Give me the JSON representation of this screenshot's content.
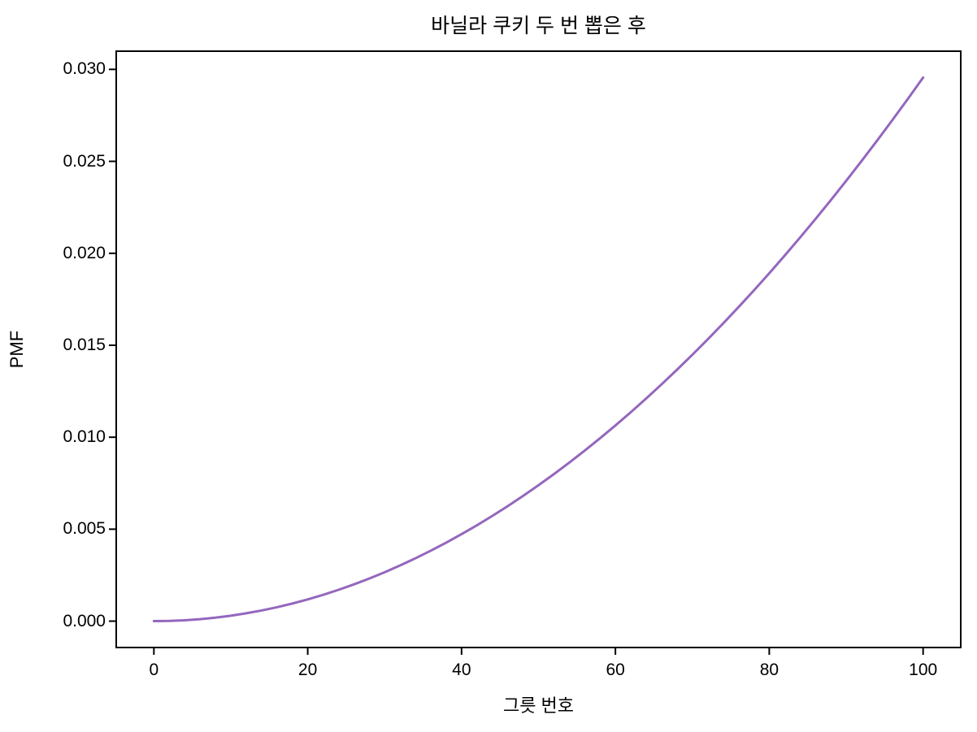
{
  "figure": {
    "background": "#ffffff",
    "text_color": "#000000",
    "spine_color": "#000000"
  },
  "chart_data": {
    "type": "line",
    "title": "바닐라 쿠키 두 번 뽑은 후",
    "xlabel": "그릇 번호",
    "ylabel": "PMF",
    "xlim": [
      -5,
      105
    ],
    "ylim": [
      -0.0014778,
      0.0310329
    ],
    "grid": false,
    "legend": "none",
    "x_ticks": [
      0,
      20,
      40,
      60,
      80,
      100
    ],
    "x_tick_labels": [
      "0",
      "20",
      "40",
      "60",
      "80",
      "100"
    ],
    "y_ticks": [
      0.0,
      0.005,
      0.01,
      0.015,
      0.02,
      0.025,
      0.03
    ],
    "y_tick_labels": [
      "0.000",
      "0.005",
      "0.010",
      "0.015",
      "0.020",
      "0.025",
      "0.030"
    ],
    "series": [
      {
        "name": "pmf-posterior",
        "color": "#9467bd",
        "line_width": 3,
        "x": [
          0,
          2,
          4,
          6,
          8,
          10,
          12,
          14,
          16,
          18,
          20,
          22,
          24,
          26,
          28,
          30,
          32,
          34,
          36,
          38,
          40,
          42,
          44,
          46,
          48,
          50,
          52,
          54,
          56,
          58,
          60,
          62,
          64,
          66,
          68,
          70,
          72,
          74,
          76,
          78,
          80,
          82,
          84,
          86,
          88,
          90,
          92,
          94,
          96,
          98,
          100
        ],
        "y": [
          0,
          1.18e-05,
          4.73e-05,
          0.0001064,
          0.0001892,
          0.0002956,
          0.0004256,
          0.0005793,
          0.0007566,
          0.0009576,
          0.0011822,
          0.0014305,
          0.0017024,
          0.0019979,
          0.0023171,
          0.00266,
          0.0030264,
          0.0034166,
          0.0038303,
          0.0042678,
          0.0047288,
          0.0052135,
          0.0057219,
          0.0062538,
          0.0068095,
          0.0073888,
          0.0079917,
          0.0086183,
          0.0092685,
          0.0099424,
          0.0106399,
          0.0113611,
          0.0121059,
          0.0128744,
          0.0136664,
          0.0144822,
          0.0153215,
          0.0161846,
          0.0170712,
          0.0179815,
          0.0189154,
          0.019873,
          0.0208542,
          0.021859,
          0.0228875,
          0.0239397,
          0.0250155,
          0.0261149,
          0.027238,
          0.0283847,
          0.0295551
        ]
      }
    ]
  }
}
